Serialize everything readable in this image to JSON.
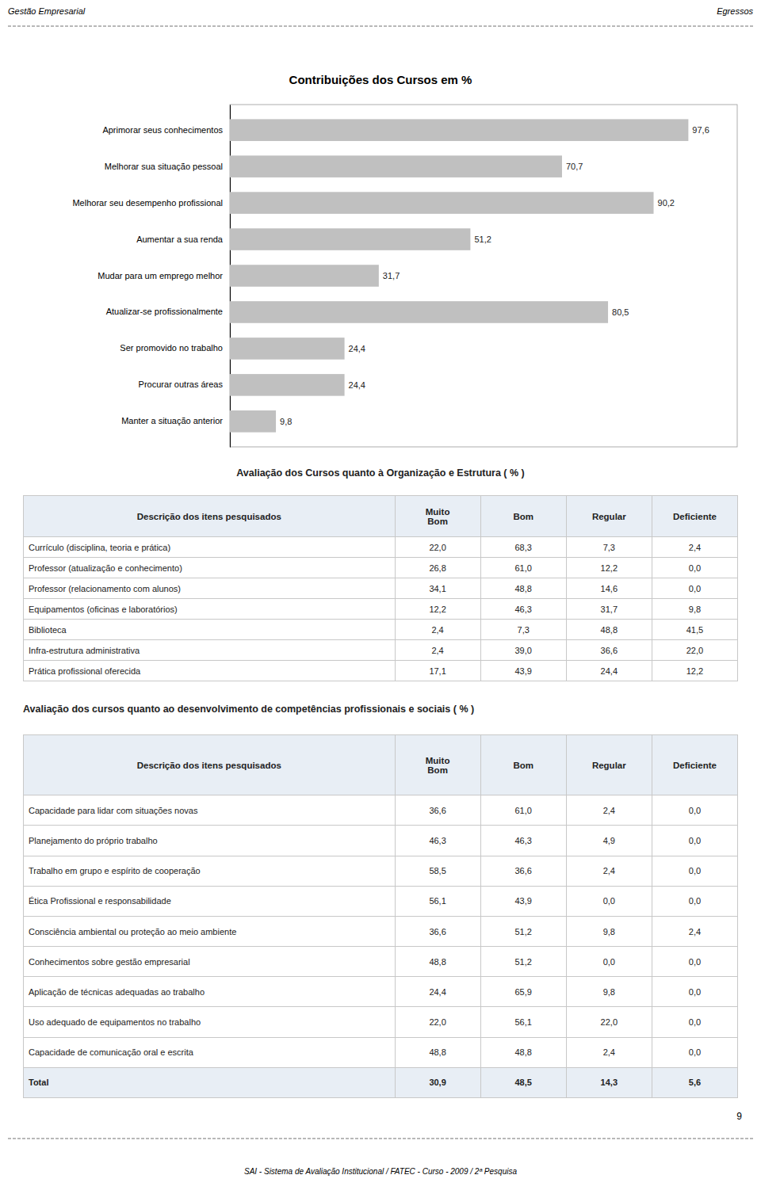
{
  "page": {
    "header_left": "Gestão Empresarial",
    "header_right": "Egressos",
    "page_number": "9",
    "footer": "SAI - Sistema de Avaliação Institucional /  FATEC - Curso - 2009 /  2ª Pesquisa"
  },
  "chart_data": [
    {
      "type": "bar",
      "orientation": "horizontal",
      "title": "Contribuições dos Cursos em %",
      "categories": [
        "Aprimorar seus conhecimentos",
        "Melhorar sua situação pessoal",
        "Melhorar seu desempenho profissional",
        "Aumentar a sua renda",
        "Mudar para um emprego melhor",
        "Atualizar-se profissionalmente",
        "Ser promovido no trabalho",
        "Procurar outras áreas",
        "Manter a situação anterior"
      ],
      "values": [
        97.6,
        70.7,
        90.2,
        51.2,
        31.7,
        80.5,
        24.4,
        24.4,
        9.8
      ],
      "value_labels": [
        "97,6",
        "70,7",
        "90,2",
        "51,2",
        "31,7",
        "80,5",
        "24,4",
        "24,4",
        "9,8"
      ],
      "color": "#c0c0c0",
      "xlim": [
        0,
        108
      ],
      "data_labels": true,
      "tick_labels": "y",
      "grid": false
    },
    {
      "type": "table",
      "title": "Avaliação dos Cursos quanto à Organização e Estrutura ( % )",
      "columns": [
        "Descrição dos itens pesquisados",
        "Muito\nBom",
        "Bom",
        "Regular",
        "Deficiente"
      ],
      "rows": [
        [
          "Currículo (disciplina, teoria e prática)",
          "22,0",
          "68,3",
          "7,3",
          "2,4"
        ],
        [
          "Professor (atualização e conhecimento)",
          "26,8",
          "61,0",
          "12,2",
          "0,0"
        ],
        [
          "Professor (relacionamento com alunos)",
          "34,1",
          "48,8",
          "14,6",
          "0,0"
        ],
        [
          "Equipamentos (oficinas e laboratórios)",
          "12,2",
          "46,3",
          "31,7",
          "9,8"
        ],
        [
          "Biblioteca",
          "2,4",
          "7,3",
          "48,8",
          "41,5"
        ],
        [
          "Infra-estrutura administrativa",
          "2,4",
          "39,0",
          "36,6",
          "22,0"
        ],
        [
          "Prática profissional oferecida",
          "17,1",
          "43,9",
          "24,4",
          "12,2"
        ]
      ]
    },
    {
      "type": "table",
      "title": "Avaliação dos cursos quanto ao desenvolvimento de competências profissionais e sociais ( % )",
      "columns": [
        "Descrição dos itens pesquisados",
        "Muito\nBom",
        "Bom",
        "Regular",
        "Deficiente"
      ],
      "rows": [
        [
          "Capacidade para lidar com situações novas",
          "36,6",
          "61,0",
          "2,4",
          "0,0"
        ],
        [
          "Planejamento do próprio trabalho",
          "46,3",
          "46,3",
          "4,9",
          "0,0"
        ],
        [
          "Trabalho em grupo e espírito de cooperação",
          "58,5",
          "36,6",
          "2,4",
          "0,0"
        ],
        [
          "Ética Profissional e responsabilidade",
          "56,1",
          "43,9",
          "0,0",
          "0,0"
        ],
        [
          "Consciência ambiental ou proteção ao meio ambiente",
          "36,6",
          "51,2",
          "9,8",
          "2,4"
        ],
        [
          "Conhecimentos sobre gestão empresarial",
          "48,8",
          "51,2",
          "0,0",
          "0,0"
        ],
        [
          "Aplicação de técnicas adequadas ao trabalho",
          "24,4",
          "65,9",
          "9,8",
          "0,0"
        ],
        [
          "Uso adequado de equipamentos no trabalho",
          "22,0",
          "56,1",
          "22,0",
          "0,0"
        ],
        [
          "Capacidade de comunicação oral e escrita",
          "48,8",
          "48,8",
          "2,4",
          "0,0"
        ]
      ],
      "total": [
        "Total",
        "30,9",
        "48,5",
        "14,3",
        "5,6"
      ]
    }
  ]
}
